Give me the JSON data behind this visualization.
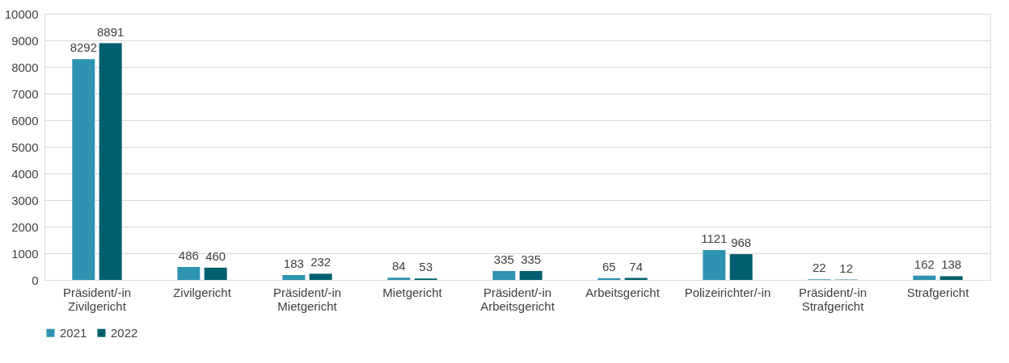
{
  "chart_data": {
    "type": "bar",
    "categories": [
      "Präsident/-in Zivilgericht",
      "Zivilgericht",
      "Präsident/-in Mietgericht",
      "Mietgericht",
      "Präsident/-in Arbeitsgericht",
      "Arbeitsgericht",
      "Polizeirichter/-in",
      "Präsident/-in Strafgericht",
      "Strafgericht"
    ],
    "series": [
      {
        "name": "2021",
        "color": "#2e93b0",
        "values": [
          8292,
          486,
          183,
          84,
          335,
          65,
          1121,
          22,
          162
        ]
      },
      {
        "name": "2022",
        "color": "#005f6e",
        "values": [
          8891,
          460,
          232,
          53,
          335,
          74,
          968,
          12,
          138
        ]
      }
    ],
    "ylim": [
      0,
      10000
    ],
    "yticks": [
      0,
      1000,
      2000,
      3000,
      4000,
      5000,
      6000,
      7000,
      8000,
      9000,
      10000
    ],
    "grid": "y",
    "legend": "bottom",
    "data_labels": true
  }
}
